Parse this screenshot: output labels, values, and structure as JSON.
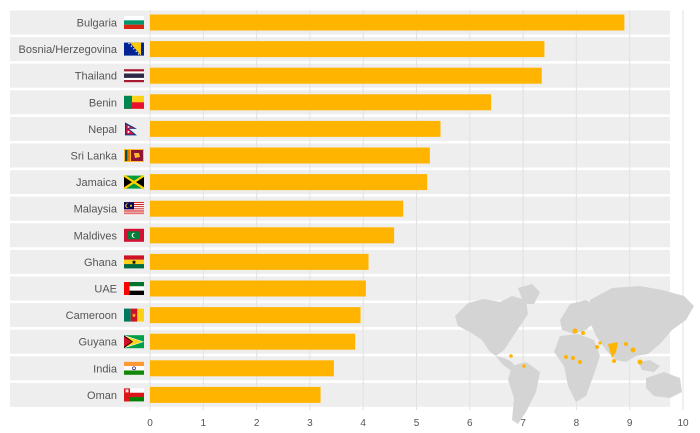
{
  "chart_data": {
    "type": "bar",
    "orientation": "horizontal",
    "categories": [
      "Bulgaria",
      "Bosnia/Herzegovina",
      "Thailand",
      "Benin",
      "Nepal",
      "Sri Lanka",
      "Jamaica",
      "Malaysia",
      "Maldives",
      "Ghana",
      "UAE",
      "Cameroon",
      "Guyana",
      "India",
      "Oman"
    ],
    "values": [
      8.9,
      7.4,
      7.35,
      6.4,
      5.45,
      5.25,
      5.2,
      4.75,
      4.58,
      4.1,
      4.05,
      3.95,
      3.85,
      3.45,
      3.2
    ],
    "xlim": [
      0,
      10
    ],
    "xticks": [
      "0",
      "1",
      "2",
      "3",
      "4",
      "5",
      "6",
      "7",
      "8",
      "9",
      "10"
    ],
    "title": "",
    "xlabel": "",
    "ylabel": "",
    "grid": true,
    "bar_color": "#FFB400",
    "row_band_color": "#EEEEEE",
    "gridline_color": "#E2E2E2",
    "map_land_color": "#D4D4D4",
    "map_highlight_color": "#FFB400",
    "flags": [
      "bulgaria-flag",
      "bosnia-herzegovina-flag",
      "thailand-flag",
      "benin-flag",
      "nepal-flag",
      "sri-lanka-flag",
      "jamaica-flag",
      "malaysia-flag",
      "maldives-flag",
      "ghana-flag",
      "uae-flag",
      "cameroon-flag",
      "guyana-flag",
      "india-flag",
      "oman-flag"
    ],
    "decoration": "world-map-icon"
  }
}
